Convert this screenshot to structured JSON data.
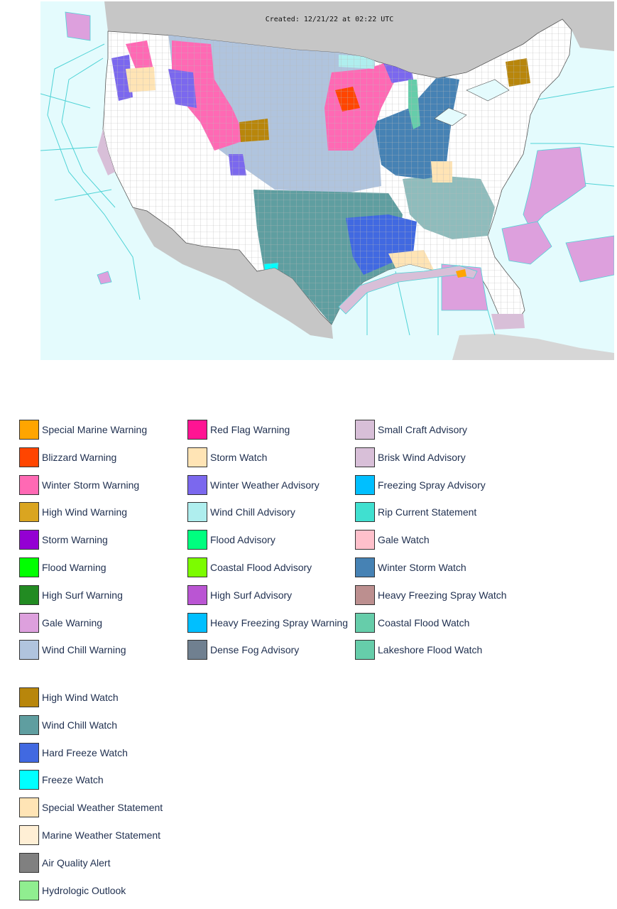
{
  "map": {
    "created_label": "Created: 12/21/22 at 02:22 UTC"
  },
  "legend": {
    "columns": [
      [
        {
          "label": "Special Marine Warning",
          "color": "#ffa500"
        },
        {
          "label": "Blizzard Warning",
          "color": "#ff4500"
        },
        {
          "label": "Winter Storm Warning",
          "color": "#ff69b4"
        },
        {
          "label": "High Wind Warning",
          "color": "#daa520"
        },
        {
          "label": "Storm Warning",
          "color": "#9400d3"
        },
        {
          "label": "Flood Warning",
          "color": "#00ff00"
        },
        {
          "label": "High Surf Warning",
          "color": "#228b22"
        },
        {
          "label": "Gale Warning",
          "color": "#dda0dd"
        },
        {
          "label": "Wind Chill Warning",
          "color": "#b0c4de"
        }
      ],
      [
        {
          "label": "Red Flag Warning",
          "color": "#ff1493"
        },
        {
          "label": "Storm Watch",
          "color": "#ffe4b5"
        },
        {
          "label": "Winter Weather Advisory",
          "color": "#7b68ee"
        },
        {
          "label": "Wind Chill Advisory",
          "color": "#afeeee"
        },
        {
          "label": "Flood Advisory",
          "color": "#00ff7f"
        },
        {
          "label": "Coastal Flood Advisory",
          "color": "#7cfc00"
        },
        {
          "label": "High Surf Advisory",
          "color": "#ba55d3"
        },
        {
          "label": "Heavy Freezing Spray Warning",
          "color": "#00bfff"
        },
        {
          "label": "Dense Fog Advisory",
          "color": "#708090"
        }
      ],
      [
        {
          "label": "Small Craft Advisory",
          "color": "#d8bfd8"
        },
        {
          "label": "Brisk Wind Advisory",
          "color": "#d8bfd8"
        },
        {
          "label": "Freezing Spray Advisory",
          "color": "#00bfff"
        },
        {
          "label": "Rip Current Statement",
          "color": "#40e0d0"
        },
        {
          "label": "Gale Watch",
          "color": "#ffc0cb"
        },
        {
          "label": "Winter Storm Watch",
          "color": "#4682b4"
        },
        {
          "label": "Heavy Freezing Spray Watch",
          "color": "#bc8f8f"
        },
        {
          "label": "Coastal Flood Watch",
          "color": "#66cdaa"
        },
        {
          "label": "Lakeshore Flood Watch",
          "color": "#66cdaa"
        }
      ]
    ],
    "extra": [
      {
        "label": "High Wind Watch",
        "color": "#b8860b"
      },
      {
        "label": "Wind Chill Watch",
        "color": "#5f9ea0"
      },
      {
        "label": "Hard Freeze Watch",
        "color": "#4169e1"
      },
      {
        "label": "Freeze Watch",
        "color": "#00ffff"
      },
      {
        "label": "Special Weather Statement",
        "color": "#ffe4b5"
      },
      {
        "label": "Marine Weather Statement",
        "color": "#ffefd5"
      },
      {
        "label": "Air Quality Alert",
        "color": "#808080"
      },
      {
        "label": "Hydrologic Outlook",
        "color": "#90ee90"
      }
    ]
  }
}
